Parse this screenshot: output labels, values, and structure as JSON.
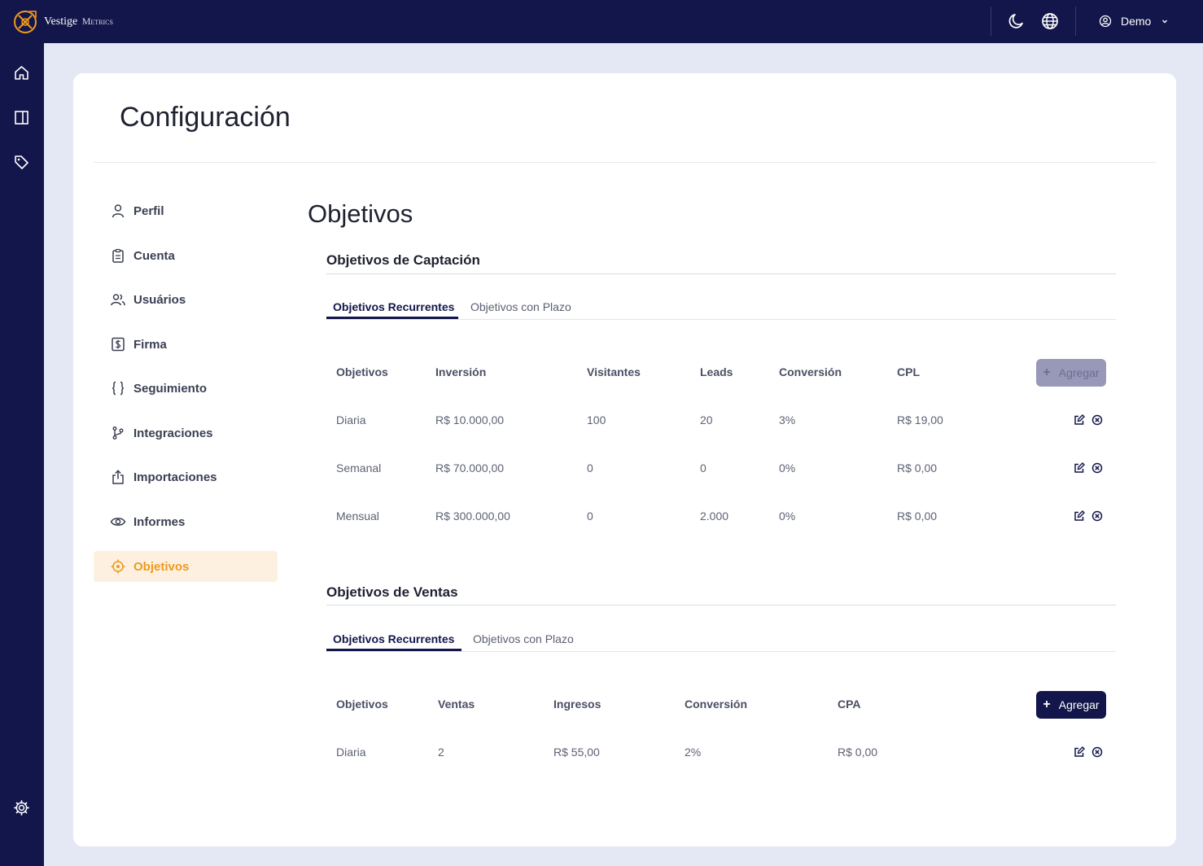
{
  "app": {
    "brand_name": "Vestige",
    "brand_suffix": "Metrics"
  },
  "topbar": {
    "theme_icon": "moon-icon",
    "language_icon": "globe-icon",
    "user_icon": "user-circle-icon",
    "user_name": "Demo"
  },
  "sidebar": {
    "items": [
      "home-icon",
      "sidebar-panel-icon",
      "tag-icon"
    ],
    "footer": "settings-icon"
  },
  "page": {
    "title": "Configuración"
  },
  "menu": {
    "items": [
      {
        "label": "Perfil",
        "icon": "user-icon"
      },
      {
        "label": "Cuenta",
        "icon": "clipboard-icon"
      },
      {
        "label": "Usuários",
        "icon": "users-icon"
      },
      {
        "label": "Firma",
        "icon": "dollar-icon"
      },
      {
        "label": "Seguimiento",
        "icon": "braces-icon"
      },
      {
        "label": "Integraciones",
        "icon": "branch-icon"
      },
      {
        "label": "Importaciones",
        "icon": "upload-icon"
      },
      {
        "label": "Informes",
        "icon": "eye-icon"
      },
      {
        "label": "Objetivos",
        "icon": "target-icon",
        "active": true
      }
    ]
  },
  "content": {
    "title": "Objetivos",
    "captacion": {
      "title": "Objetivos de Captación",
      "tabs": [
        "Objetivos Recurrentes",
        "Objetivos con Plazo"
      ],
      "active_tab": "Objetivos Recurrentes",
      "columns": [
        "Objetivos",
        "Inversión",
        "Visitantes",
        "Leads",
        "Conversión",
        "CPL"
      ],
      "add_label": "Agregar",
      "rows": [
        [
          "Diaria",
          "R$ 10.000,00",
          "100",
          "20",
          "3%",
          "R$ 19,00"
        ],
        [
          "Semanal",
          "R$ 70.000,00",
          "0",
          "0",
          "0%",
          "R$ 0,00"
        ],
        [
          "Mensual",
          "R$ 300.000,00",
          "0",
          "2.000",
          "0%",
          "R$ 0,00"
        ]
      ]
    },
    "ventas": {
      "title": "Objetivos de Ventas",
      "tabs": [
        "Objetivos Recurrentes",
        "Objetivos con Plazo"
      ],
      "active_tab": "Objetivos Recurrentes",
      "columns": [
        "Objetivos",
        "Ventas",
        "Ingresos",
        "Conversión",
        "CPA"
      ],
      "add_label": "Agregar",
      "rows": [
        [
          "Diaria",
          "2",
          "R$ 55,00",
          "2%",
          "R$ 0,00"
        ]
      ]
    }
  },
  "colors": {
    "navy": "#13164a",
    "accent": "#ef9a1d",
    "accent_bg": "#fdf0e1",
    "background": "#e3e8f4"
  }
}
